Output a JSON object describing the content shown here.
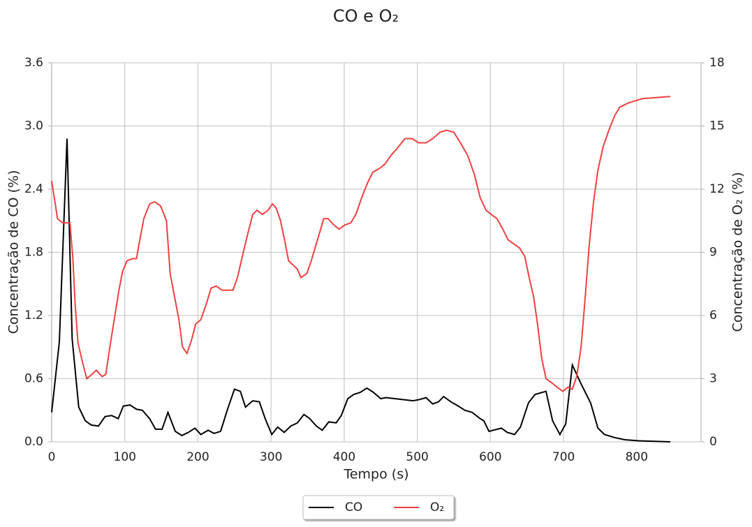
{
  "chart_data": {
    "type": "line",
    "title": "CO e O₂",
    "x_label": "Tempo (s)",
    "y_label": "Concentração de CO (%)",
    "y2_label": "Concentração de O₂ (%)",
    "xlim": [
      0,
      888
    ],
    "xticks": [
      0,
      100,
      200,
      300,
      400,
      500,
      600,
      700,
      800
    ],
    "ylim": [
      0,
      3.6
    ],
    "yticks": [
      {
        "value": 0,
        "label": "0.0"
      },
      0.6,
      1.2,
      1.8,
      {
        "value": 2.4,
        "label": "2.4"
      },
      {
        "value": 3,
        "label": "3.0"
      },
      3.6
    ],
    "y2lim": [
      0,
      18
    ],
    "y2ticks": [
      0,
      3,
      6,
      9,
      12,
      15,
      18
    ],
    "grid": true,
    "series": [
      {
        "name": "CO",
        "color": "#000000",
        "x": [
          0,
          10.5,
          21,
          28,
          37,
          46,
          54,
          64,
          73,
          82,
          91,
          98,
          107,
          116,
          124,
          134,
          142,
          151,
          159,
          169,
          178,
          187,
          196,
          204,
          214,
          222,
          231,
          241,
          250,
          258,
          265,
          275,
          284,
          292,
          301,
          309,
          318,
          327,
          336,
          345,
          353,
          362,
          370,
          379,
          389,
          396,
          405,
          413,
          422,
          431,
          440,
          450,
          457,
          494,
          502,
          512,
          521,
          529,
          536,
          546,
          556,
          565,
          575,
          586,
          591,
          598,
          615,
          623,
          633,
          641,
          652,
          661,
          676,
          685,
          695,
          703,
          712,
          724,
          737,
          747,
          756,
          770,
          784,
          803,
          846
        ],
        "values": [
          0.28,
          0.95,
          2.88,
          0.98,
          0.33,
          0.2,
          0.16,
          0.15,
          0.24,
          0.25,
          0.22,
          0.34,
          0.35,
          0.31,
          0.3,
          0.22,
          0.12,
          0.12,
          0.28,
          0.1,
          0.06,
          0.09,
          0.13,
          0.07,
          0.11,
          0.08,
          0.1,
          0.32,
          0.5,
          0.48,
          0.33,
          0.39,
          0.38,
          0.22,
          0.07,
          0.14,
          0.09,
          0.15,
          0.18,
          0.26,
          0.22,
          0.15,
          0.11,
          0.19,
          0.18,
          0.25,
          0.41,
          0.45,
          0.47,
          0.51,
          0.47,
          0.41,
          0.42,
          0.39,
          0.4,
          0.42,
          0.36,
          0.38,
          0.43,
          0.38,
          0.34,
          0.3,
          0.28,
          0.22,
          0.2,
          0.1,
          0.13,
          0.09,
          0.07,
          0.14,
          0.37,
          0.45,
          0.48,
          0.2,
          0.07,
          0.17,
          0.73,
          0.55,
          0.37,
          0.13,
          0.07,
          0.04,
          0.02,
          0.01,
          0
        ]
      },
      {
        "name": "O₂",
        "color": "#f04040",
        "axis": "y2",
        "x": [
          0,
          4,
          8,
          15,
          25,
          29,
          32,
          36,
          42,
          48,
          55,
          61,
          69,
          74,
          80,
          86,
          92,
          97,
          103,
          111,
          116,
          120,
          126,
          134,
          141,
          149,
          157,
          162,
          168,
          174,
          179,
          185,
          191,
          197,
          204,
          212,
          218,
          225,
          233,
          241,
          248,
          254,
          262,
          269,
          275,
          281,
          288,
          296,
          302,
          307,
          313,
          319,
          324,
          330,
          336,
          341,
          349,
          355,
          361,
          367,
          372,
          378,
          386,
          393,
          401,
          409,
          416,
          424,
          432,
          439,
          449,
          456,
          464,
          474,
          483,
          493,
          502,
          512,
          521,
          531,
          540,
          550,
          559,
          569,
          578,
          586,
          594,
          601,
          609,
          617,
          624,
          632,
          640,
          647,
          653,
          659,
          664,
          670,
          676,
          684,
          691,
          699,
          706,
          712,
          718,
          724,
          729,
          735,
          741,
          747,
          754,
          762,
          770,
          777,
          789,
          808,
          827,
          846
        ],
        "values": [
          12.4,
          11.5,
          10.6,
          10.4,
          10.4,
          8.7,
          6.6,
          4.7,
          3.8,
          3.0,
          3.2,
          3.4,
          3.1,
          3.2,
          4.6,
          5.9,
          7.2,
          8.1,
          8.6,
          8.7,
          8.7,
          9.5,
          10.6,
          11.3,
          11.4,
          11.2,
          10.5,
          8.0,
          6.9,
          5.8,
          4.5,
          4.2,
          4.8,
          5.6,
          5.8,
          6.6,
          7.3,
          7.4,
          7.2,
          7.2,
          7.2,
          7.8,
          9.0,
          10.0,
          10.8,
          11.0,
          10.8,
          11.0,
          11.3,
          11.1,
          10.5,
          9.5,
          8.6,
          8.4,
          8.2,
          7.8,
          8.0,
          8.6,
          9.3,
          10.0,
          10.6,
          10.6,
          10.3,
          10.1,
          10.3,
          10.4,
          10.8,
          11.6,
          12.3,
          12.8,
          13.0,
          13.2,
          13.6,
          14.0,
          14.4,
          14.4,
          14.2,
          14.2,
          14.4,
          14.7,
          14.8,
          14.7,
          14.2,
          13.6,
          12.7,
          11.6,
          11.0,
          10.8,
          10.6,
          10.1,
          9.6,
          9.4,
          9.2,
          8.8,
          7.8,
          6.9,
          5.7,
          4.0,
          3.0,
          2.8,
          2.6,
          2.4,
          2.6,
          2.5,
          3.1,
          4.5,
          6.6,
          9.3,
          11.4,
          12.9,
          14.0,
          14.8,
          15.5,
          15.9,
          16.1,
          16.3,
          16.35,
          16.4
        ]
      }
    ]
  }
}
